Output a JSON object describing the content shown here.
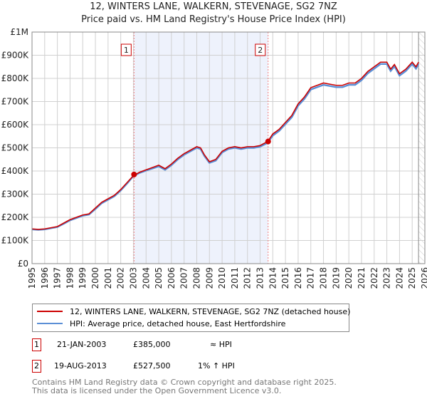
{
  "title": "12, WINTERS LANE, WALKERN, STEVENAGE, SG2 7NZ",
  "subtitle": "Price paid vs. HM Land Registry's House Price Index (HPI)",
  "chart_data": {
    "type": "line",
    "title": "12, WINTERS LANE, WALKERN, STEVENAGE, SG2 7NZ",
    "subtitle": "Price paid vs. HM Land Registry's House Price Index (HPI)",
    "xlim": [
      1995,
      2026
    ],
    "ylim": [
      0,
      1000000
    ],
    "x_ticks": [
      "1995",
      "1996",
      "1997",
      "1998",
      "1999",
      "2000",
      "2001",
      "2002",
      "2003",
      "2004",
      "2005",
      "2006",
      "2007",
      "2008",
      "2009",
      "2010",
      "2011",
      "2012",
      "2013",
      "2014",
      "2015",
      "2016",
      "2017",
      "2018",
      "2019",
      "2020",
      "2021",
      "2022",
      "2023",
      "2024",
      "2025",
      "2026"
    ],
    "y_ticks": [
      {
        "v": 0,
        "l": "£0"
      },
      {
        "v": 100000,
        "l": "£100K"
      },
      {
        "v": 200000,
        "l": "£200K"
      },
      {
        "v": 300000,
        "l": "£300K"
      },
      {
        "v": 400000,
        "l": "£400K"
      },
      {
        "v": 500000,
        "l": "£500K"
      },
      {
        "v": 600000,
        "l": "£600K"
      },
      {
        "v": 700000,
        "l": "£700K"
      },
      {
        "v": 800000,
        "l": "£800K"
      },
      {
        "v": 900000,
        "l": "£900K"
      },
      {
        "v": 1000000,
        "l": "£1M"
      }
    ],
    "grid": true,
    "x": [
      1995,
      1995.5,
      1996,
      1997,
      1997.5,
      1998,
      1998.5,
      1999,
      1999.5,
      2000,
      2000.5,
      2001,
      2001.5,
      2002,
      2002.5,
      2003,
      2003.5,
      2004,
      2004.5,
      2005,
      2005.5,
      2006,
      2006.5,
      2007,
      2007.5,
      2008,
      2008.3,
      2008.6,
      2009,
      2009.5,
      2010,
      2010.5,
      2011,
      2011.5,
      2012,
      2012.5,
      2013,
      2013.6,
      2014,
      2014.5,
      2015,
      2015.5,
      2016,
      2016.5,
      2017,
      2017.5,
      2018,
      2018.5,
      2019,
      2019.5,
      2020,
      2020.5,
      2021,
      2021.5,
      2022,
      2022.5,
      2023,
      2023.3,
      2023.6,
      2024,
      2024.5,
      2025,
      2025.3,
      2025.5
    ],
    "series": [
      {
        "name": "12, WINTERS LANE, WALKERN, STEVENAGE, SG2 7NZ (detached house)",
        "color": "#cc0000",
        "values": [
          150000,
          148000,
          150000,
          160000,
          175000,
          190000,
          200000,
          210000,
          215000,
          240000,
          265000,
          280000,
          295000,
          320000,
          350000,
          380000,
          395000,
          405000,
          415000,
          425000,
          410000,
          430000,
          455000,
          475000,
          490000,
          505000,
          500000,
          470000,
          440000,
          450000,
          485000,
          500000,
          505000,
          500000,
          505000,
          505000,
          510000,
          527500,
          560000,
          580000,
          610000,
          640000,
          690000,
          720000,
          760000,
          770000,
          780000,
          775000,
          770000,
          770000,
          780000,
          780000,
          800000,
          830000,
          850000,
          870000,
          870000,
          840000,
          860000,
          820000,
          840000,
          870000,
          850000,
          870000
        ]
      },
      {
        "name": "HPI: Average price, detached house, East Hertfordshire",
        "color": "#5b8fd6",
        "values": [
          148000,
          146000,
          148000,
          158000,
          172000,
          187000,
          197000,
          207000,
          212000,
          236000,
          261000,
          276000,
          291000,
          316000,
          346000,
          378000,
          392000,
          402000,
          411000,
          420000,
          405000,
          425000,
          450000,
          470000,
          485000,
          500000,
          495000,
          465000,
          435000,
          445000,
          480000,
          495000,
          500000,
          495000,
          500000,
          500000,
          505000,
          522000,
          553000,
          573000,
          603000,
          632000,
          682000,
          712000,
          752000,
          762000,
          772000,
          767000,
          762000,
          762000,
          772000,
          772000,
          792000,
          822000,
          842000,
          862000,
          862000,
          832000,
          852000,
          812000,
          832000,
          862000,
          842000,
          862000
        ]
      }
    ],
    "sales": [
      {
        "id": "1",
        "date": "21-JAN-2003",
        "x": 2003.05,
        "price": 385000,
        "hpi": "≈ HPI"
      },
      {
        "id": "2",
        "date": "19-AUG-2013",
        "x": 2013.63,
        "price": 527500,
        "hpi": "1% ↑ HPI"
      }
    ],
    "sale_prices": [
      "£385,000",
      "£527,500"
    ],
    "forecast_from": 2025.5
  },
  "legend": {
    "property": "12, WINTERS LANE, WALKERN, STEVENAGE, SG2 7NZ (detached house)",
    "hpi": "HPI: Average price, detached house, East Hertfordshire"
  },
  "footer": [
    "Contains HM Land Registry data © Crown copyright and database right 2025.",
    "This data is licensed under the Open Government Licence v3.0."
  ]
}
